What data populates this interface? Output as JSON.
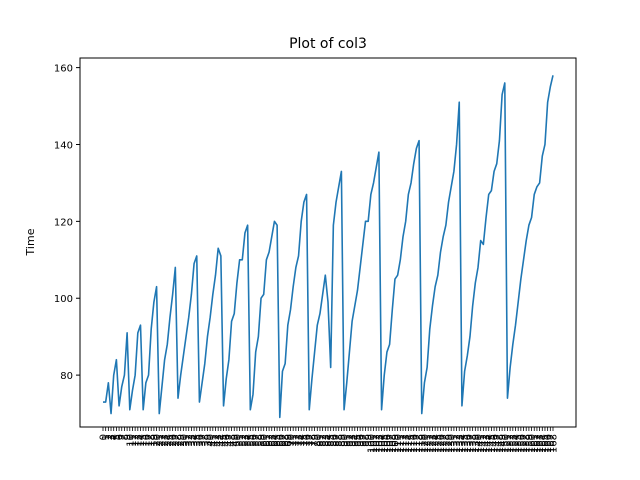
{
  "chart_data": {
    "type": "line",
    "title": "Plot of col3",
    "xlabel": "",
    "ylabel": "Time",
    "ylim": [
      66.5,
      162.5
    ],
    "y_ticks": [
      80,
      100,
      120,
      140,
      160
    ],
    "grid": false,
    "legend": "none",
    "line_color": "#1f77b4",
    "series": [
      {
        "values": [
          73,
          73,
          78,
          70,
          80,
          84,
          72,
          77,
          80,
          91,
          71,
          76,
          80,
          91,
          93,
          71,
          78,
          80,
          92,
          99,
          103,
          70,
          77,
          84,
          88,
          95,
          101,
          108,
          74,
          80,
          85,
          90,
          95,
          101,
          109,
          111,
          73,
          78,
          83,
          90,
          95,
          101,
          106,
          113,
          111,
          72,
          79,
          84,
          94,
          96,
          104,
          110,
          110,
          117,
          119,
          71,
          75,
          86,
          90,
          100,
          101,
          110,
          112,
          116,
          120,
          119,
          69,
          81,
          83,
          93,
          97,
          103,
          108,
          111,
          120,
          125,
          127,
          71,
          79,
          86,
          93,
          96,
          101,
          106,
          99,
          82,
          119,
          125,
          129,
          133,
          71,
          78,
          86,
          94,
          98,
          102,
          108,
          114,
          120,
          120,
          127,
          130,
          134,
          138,
          71,
          80,
          86,
          88,
          97,
          105,
          106,
          110,
          116,
          120,
          127,
          130,
          135,
          139,
          141,
          70,
          78,
          82,
          92,
          98,
          103,
          106,
          112,
          116,
          119,
          125,
          129,
          133,
          140,
          151,
          72,
          81,
          85,
          90,
          98,
          104,
          108,
          115,
          114,
          121,
          127,
          128,
          133,
          135,
          141,
          153,
          156,
          74,
          82,
          88,
          93,
          99,
          105,
          110,
          115,
          119,
          121,
          127,
          129,
          130,
          137,
          140,
          151,
          155,
          158
        ]
      }
    ]
  }
}
